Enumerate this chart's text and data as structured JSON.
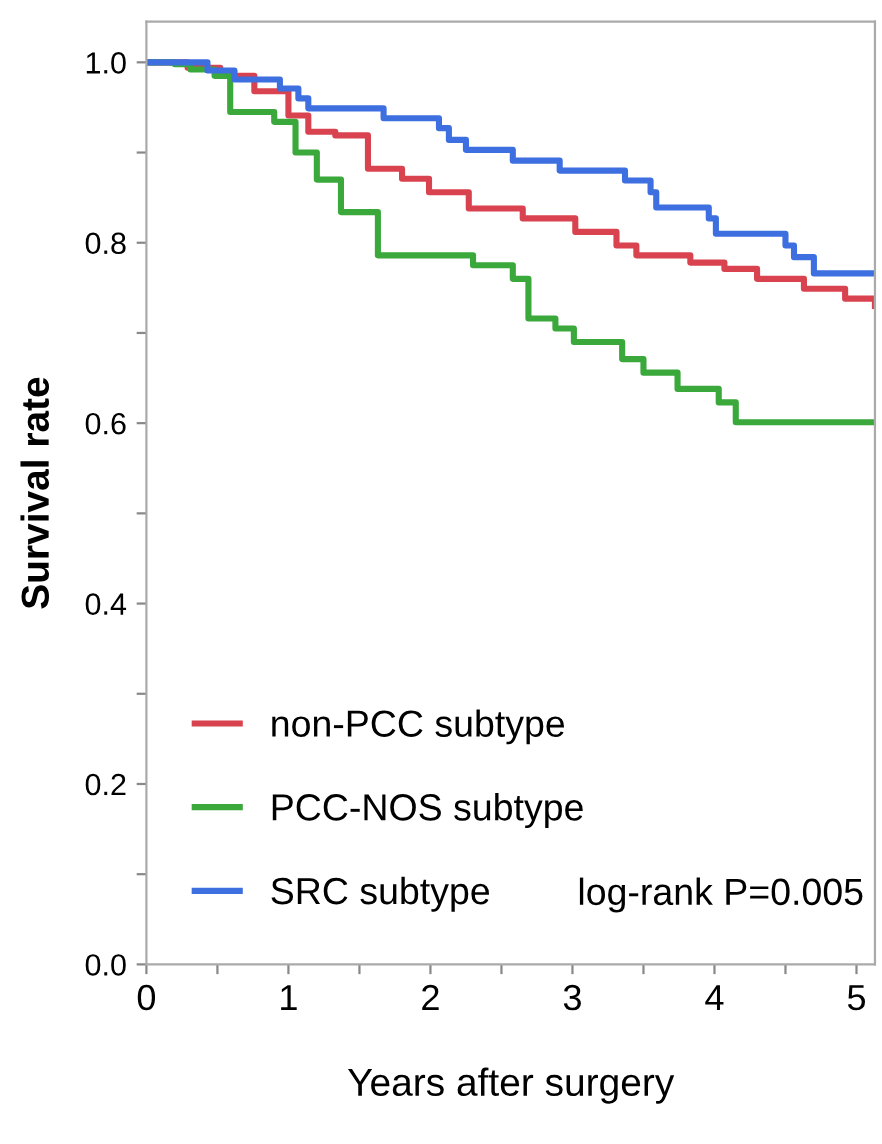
{
  "chart_data": {
    "type": "step",
    "xlabel": "Years after surgery",
    "ylabel": "Survival rate",
    "xlim": [
      0,
      5.13
    ],
    "ylim": [
      0,
      1.045
    ],
    "xticks": [
      0,
      {
        "value": 0.5,
        "label": null
      },
      1,
      {
        "value": 1.5,
        "label": null
      },
      2,
      {
        "value": 2.5,
        "label": null
      },
      3,
      {
        "value": 3.5,
        "label": null
      },
      4,
      {
        "value": 4.5,
        "label": null
      },
      5
    ],
    "yticks": [
      {
        "value": 0,
        "label": "0.0"
      },
      {
        "value": 0.1,
        "label": null
      },
      0.2,
      {
        "value": 0.3,
        "label": null
      },
      0.4,
      {
        "value": 0.5,
        "label": null
      },
      0.6,
      {
        "value": 0.7,
        "label": null
      },
      0.8,
      {
        "value": 0.9,
        "label": null
      },
      {
        "value": 1,
        "label": "1.0"
      }
    ],
    "grid": false,
    "legend": "bottom left",
    "line_style": "solid",
    "marker": "none",
    "annotations": [
      "log-rank P=0.005"
    ],
    "series": [
      {
        "name": "non-PCC subtype",
        "color": "#d9434f",
        "x": [
          0,
          0.29,
          0.52,
          0.76,
          1.0,
          1.14,
          1.33,
          1.56,
          1.8,
          1.99,
          2.27,
          2.65,
          3.02,
          3.31,
          3.45,
          3.83,
          4.07,
          4.3,
          4.63,
          4.92,
          5.13
        ],
        "values": [
          1.0,
          0.994,
          0.985,
          0.968,
          0.941,
          0.923,
          0.919,
          0.882,
          0.871,
          0.856,
          0.838,
          0.827,
          0.812,
          0.797,
          0.786,
          0.778,
          0.771,
          0.76,
          0.749,
          0.738,
          0.73
        ]
      },
      {
        "name": "PCC-NOS subtype",
        "color": "#3aa83a",
        "x": [
          0,
          0.2,
          0.31,
          0.48,
          0.59,
          0.9,
          1.05,
          1.2,
          1.37,
          1.63,
          2.3,
          2.58,
          2.69,
          2.88,
          3.01,
          3.35,
          3.5,
          3.74,
          4.03,
          4.15,
          5.13
        ],
        "values": [
          1.0,
          0.998,
          0.992,
          0.985,
          0.945,
          0.934,
          0.9,
          0.87,
          0.834,
          0.786,
          0.775,
          0.76,
          0.716,
          0.705,
          0.69,
          0.671,
          0.656,
          0.638,
          0.623,
          0.601,
          0.601
        ]
      },
      {
        "name": "SRC subtype",
        "color": "#3d6fe0",
        "x": [
          0,
          0.43,
          0.62,
          0.94,
          1.07,
          1.14,
          1.67,
          2.06,
          2.13,
          2.25,
          2.58,
          2.91,
          3.37,
          3.55,
          3.59,
          3.96,
          4.01,
          4.5,
          4.56,
          4.7,
          5.13
        ],
        "values": [
          1.0,
          0.991,
          0.981,
          0.971,
          0.96,
          0.949,
          0.938,
          0.927,
          0.914,
          0.903,
          0.891,
          0.88,
          0.869,
          0.856,
          0.839,
          0.827,
          0.81,
          0.797,
          0.784,
          0.766,
          0.766
        ]
      }
    ]
  }
}
